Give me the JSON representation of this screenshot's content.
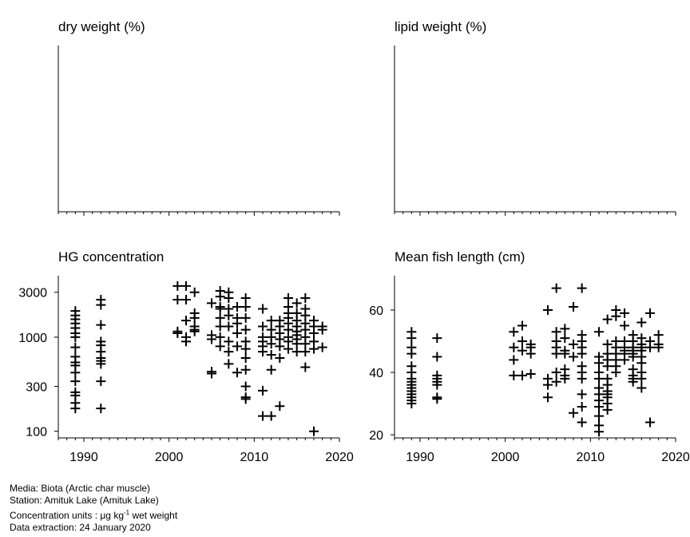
{
  "panels": {
    "dry_weight": {
      "title": "dry weight (%)"
    },
    "lipid_weight": {
      "title": "lipid weight (%)"
    },
    "hg": {
      "title": "HG concentration"
    },
    "length": {
      "title": "Mean fish length (cm)"
    }
  },
  "footer": {
    "media": "Media: Biota (Arctic char muscle)",
    "station": "Station: Amituk Lake (Amituk Lake)",
    "units_prefix": "Concentration units : μg kg",
    "units_exp": "-1",
    "units_suffix": " wet weight",
    "extraction": "Data extraction: 24 January 2020"
  },
  "chart_data": [
    {
      "type": "scatter",
      "title": "dry weight (%)",
      "xlim": [
        1987,
        2020
      ],
      "points": []
    },
    {
      "type": "scatter",
      "title": "lipid weight (%)",
      "xlim": [
        1987,
        2020
      ],
      "points": []
    },
    {
      "type": "scatter",
      "title": "HG concentration",
      "y_scale": "log",
      "xlim": [
        1987,
        2020
      ],
      "ylim": [
        85,
        4500
      ],
      "x_ticks": [
        1990,
        2000,
        2010,
        2020
      ],
      "y_ticks": [
        100,
        300,
        1000,
        3000
      ],
      "marker": "plus",
      "points": [
        {
          "x": 1989,
          "y": 1900
        },
        {
          "x": 1989,
          "y": 1700
        },
        {
          "x": 1989,
          "y": 1550
        },
        {
          "x": 1989,
          "y": 1400
        },
        {
          "x": 1989,
          "y": 1250
        },
        {
          "x": 1989,
          "y": 1100
        },
        {
          "x": 1989,
          "y": 1000
        },
        {
          "x": 1989,
          "y": 780
        },
        {
          "x": 1989,
          "y": 620
        },
        {
          "x": 1989,
          "y": 540
        },
        {
          "x": 1989,
          "y": 500
        },
        {
          "x": 1989,
          "y": 420
        },
        {
          "x": 1989,
          "y": 340
        },
        {
          "x": 1989,
          "y": 260
        },
        {
          "x": 1989,
          "y": 240
        },
        {
          "x": 1989,
          "y": 200
        },
        {
          "x": 1989,
          "y": 175
        },
        {
          "x": 1992,
          "y": 2500
        },
        {
          "x": 1992,
          "y": 2200
        },
        {
          "x": 1992,
          "y": 1350
        },
        {
          "x": 1992,
          "y": 900
        },
        {
          "x": 1992,
          "y": 820
        },
        {
          "x": 1992,
          "y": 700
        },
        {
          "x": 1992,
          "y": 600
        },
        {
          "x": 1992,
          "y": 560
        },
        {
          "x": 1992,
          "y": 520
        },
        {
          "x": 1992,
          "y": 340
        },
        {
          "x": 1992,
          "y": 175
        },
        {
          "x": 2001,
          "y": 3500
        },
        {
          "x": 2001,
          "y": 2500
        },
        {
          "x": 2001,
          "y": 1150
        },
        {
          "x": 2001,
          "y": 1100
        },
        {
          "x": 2002,
          "y": 3500
        },
        {
          "x": 2002,
          "y": 2500
        },
        {
          "x": 2002,
          "y": 1500
        },
        {
          "x": 2002,
          "y": 1000
        },
        {
          "x": 2002,
          "y": 900
        },
        {
          "x": 2003,
          "y": 3000
        },
        {
          "x": 2003,
          "y": 1800
        },
        {
          "x": 2003,
          "y": 1600
        },
        {
          "x": 2003,
          "y": 1300
        },
        {
          "x": 2003,
          "y": 1200
        },
        {
          "x": 2003,
          "y": 1150
        },
        {
          "x": 2005,
          "y": 2300
        },
        {
          "x": 2005,
          "y": 1050
        },
        {
          "x": 2005,
          "y": 950
        },
        {
          "x": 2005,
          "y": 430
        },
        {
          "x": 2005,
          "y": 410
        },
        {
          "x": 2006,
          "y": 3100
        },
        {
          "x": 2006,
          "y": 2700
        },
        {
          "x": 2006,
          "y": 2100
        },
        {
          "x": 2006,
          "y": 2000
        },
        {
          "x": 2006,
          "y": 1600
        },
        {
          "x": 2006,
          "y": 1300
        },
        {
          "x": 2006,
          "y": 1000
        },
        {
          "x": 2006,
          "y": 800
        },
        {
          "x": 2007,
          "y": 3000
        },
        {
          "x": 2007,
          "y": 2600
        },
        {
          "x": 2007,
          "y": 2000
        },
        {
          "x": 2007,
          "y": 1700
        },
        {
          "x": 2007,
          "y": 1300
        },
        {
          "x": 2007,
          "y": 900
        },
        {
          "x": 2007,
          "y": 700
        },
        {
          "x": 2007,
          "y": 520
        },
        {
          "x": 2008,
          "y": 2100
        },
        {
          "x": 2008,
          "y": 1600
        },
        {
          "x": 2008,
          "y": 1400
        },
        {
          "x": 2008,
          "y": 1100
        },
        {
          "x": 2008,
          "y": 800
        },
        {
          "x": 2008,
          "y": 420
        },
        {
          "x": 2009,
          "y": 2600
        },
        {
          "x": 2009,
          "y": 2100
        },
        {
          "x": 2009,
          "y": 1600
        },
        {
          "x": 2009,
          "y": 1200
        },
        {
          "x": 2009,
          "y": 900
        },
        {
          "x": 2009,
          "y": 750
        },
        {
          "x": 2009,
          "y": 600
        },
        {
          "x": 2009,
          "y": 450
        },
        {
          "x": 2009,
          "y": 300
        },
        {
          "x": 2009,
          "y": 230
        },
        {
          "x": 2009,
          "y": 220
        },
        {
          "x": 2011,
          "y": 2000
        },
        {
          "x": 2011,
          "y": 1300
        },
        {
          "x": 2011,
          "y": 1000
        },
        {
          "x": 2011,
          "y": 900
        },
        {
          "x": 2011,
          "y": 800
        },
        {
          "x": 2011,
          "y": 700
        },
        {
          "x": 2011,
          "y": 270
        },
        {
          "x": 2011,
          "y": 145
        },
        {
          "x": 2012,
          "y": 1500
        },
        {
          "x": 2012,
          "y": 1200
        },
        {
          "x": 2012,
          "y": 1000
        },
        {
          "x": 2012,
          "y": 850
        },
        {
          "x": 2012,
          "y": 650
        },
        {
          "x": 2012,
          "y": 450
        },
        {
          "x": 2012,
          "y": 145
        },
        {
          "x": 2013,
          "y": 1500
        },
        {
          "x": 2013,
          "y": 1300
        },
        {
          "x": 2013,
          "y": 1100
        },
        {
          "x": 2013,
          "y": 950
        },
        {
          "x": 2013,
          "y": 800
        },
        {
          "x": 2013,
          "y": 600
        },
        {
          "x": 2013,
          "y": 185
        },
        {
          "x": 2014,
          "y": 2600
        },
        {
          "x": 2014,
          "y": 2100
        },
        {
          "x": 2014,
          "y": 1800
        },
        {
          "x": 2014,
          "y": 1600
        },
        {
          "x": 2014,
          "y": 1400
        },
        {
          "x": 2014,
          "y": 1200
        },
        {
          "x": 2014,
          "y": 1000
        },
        {
          "x": 2014,
          "y": 900
        },
        {
          "x": 2014,
          "y": 750
        },
        {
          "x": 2015,
          "y": 2300
        },
        {
          "x": 2015,
          "y": 1800
        },
        {
          "x": 2015,
          "y": 1500
        },
        {
          "x": 2015,
          "y": 1300
        },
        {
          "x": 2015,
          "y": 1150
        },
        {
          "x": 2015,
          "y": 1050
        },
        {
          "x": 2015,
          "y": 950
        },
        {
          "x": 2015,
          "y": 850
        },
        {
          "x": 2015,
          "y": 700
        },
        {
          "x": 2016,
          "y": 2600
        },
        {
          "x": 2016,
          "y": 2000
        },
        {
          "x": 2016,
          "y": 1700
        },
        {
          "x": 2016,
          "y": 1400
        },
        {
          "x": 2016,
          "y": 1200
        },
        {
          "x": 2016,
          "y": 1000
        },
        {
          "x": 2016,
          "y": 850
        },
        {
          "x": 2016,
          "y": 700
        },
        {
          "x": 2016,
          "y": 480
        },
        {
          "x": 2017,
          "y": 1500
        },
        {
          "x": 2017,
          "y": 1300
        },
        {
          "x": 2017,
          "y": 1100
        },
        {
          "x": 2017,
          "y": 900
        },
        {
          "x": 2017,
          "y": 750
        },
        {
          "x": 2017,
          "y": 100
        },
        {
          "x": 2018,
          "y": 1300
        },
        {
          "x": 2018,
          "y": 1200
        },
        {
          "x": 2018,
          "y": 780
        }
      ]
    },
    {
      "type": "scatter",
      "title": "Mean fish length (cm)",
      "xlim": [
        1987,
        2020
      ],
      "ylim": [
        19,
        71
      ],
      "x_ticks": [
        1990,
        2000,
        2010,
        2020
      ],
      "y_ticks": [
        20,
        40,
        60
      ],
      "marker": "plus",
      "points": [
        {
          "x": 1989,
          "y": 53
        },
        {
          "x": 1989,
          "y": 51
        },
        {
          "x": 1989,
          "y": 48
        },
        {
          "x": 1989,
          "y": 46
        },
        {
          "x": 1989,
          "y": 42
        },
        {
          "x": 1989,
          "y": 40
        },
        {
          "x": 1989,
          "y": 38
        },
        {
          "x": 1989,
          "y": 37
        },
        {
          "x": 1989,
          "y": 36
        },
        {
          "x": 1989,
          "y": 35
        },
        {
          "x": 1989,
          "y": 34
        },
        {
          "x": 1989,
          "y": 33
        },
        {
          "x": 1989,
          "y": 32
        },
        {
          "x": 1989,
          "y": 31
        },
        {
          "x": 1989,
          "y": 30
        },
        {
          "x": 1992,
          "y": 51
        },
        {
          "x": 1992,
          "y": 45
        },
        {
          "x": 1992,
          "y": 39
        },
        {
          "x": 1992,
          "y": 38
        },
        {
          "x": 1992,
          "y": 37
        },
        {
          "x": 1992,
          "y": 36
        },
        {
          "x": 1992,
          "y": 32
        },
        {
          "x": 1992,
          "y": 31.5
        },
        {
          "x": 2001,
          "y": 53
        },
        {
          "x": 2001,
          "y": 48
        },
        {
          "x": 2001,
          "y": 44
        },
        {
          "x": 2001,
          "y": 39
        },
        {
          "x": 2002,
          "y": 55
        },
        {
          "x": 2002,
          "y": 50
        },
        {
          "x": 2002,
          "y": 47
        },
        {
          "x": 2002,
          "y": 39
        },
        {
          "x": 2003,
          "y": 49
        },
        {
          "x": 2003,
          "y": 48
        },
        {
          "x": 2003,
          "y": 46
        },
        {
          "x": 2003,
          "y": 39.5
        },
        {
          "x": 2005,
          "y": 60
        },
        {
          "x": 2005,
          "y": 38
        },
        {
          "x": 2005,
          "y": 36
        },
        {
          "x": 2005,
          "y": 32
        },
        {
          "x": 2006,
          "y": 67
        },
        {
          "x": 2006,
          "y": 53
        },
        {
          "x": 2006,
          "y": 50
        },
        {
          "x": 2006,
          "y": 48
        },
        {
          "x": 2006,
          "y": 46
        },
        {
          "x": 2006,
          "y": 40
        },
        {
          "x": 2006,
          "y": 37
        },
        {
          "x": 2007,
          "y": 54
        },
        {
          "x": 2007,
          "y": 51
        },
        {
          "x": 2007,
          "y": 47
        },
        {
          "x": 2007,
          "y": 46
        },
        {
          "x": 2007,
          "y": 41
        },
        {
          "x": 2007,
          "y": 39
        },
        {
          "x": 2007,
          "y": 38
        },
        {
          "x": 2008,
          "y": 61
        },
        {
          "x": 2008,
          "y": 49
        },
        {
          "x": 2008,
          "y": 45
        },
        {
          "x": 2008,
          "y": 27
        },
        {
          "x": 2009,
          "y": 67
        },
        {
          "x": 2009,
          "y": 52
        },
        {
          "x": 2009,
          "y": 50
        },
        {
          "x": 2009,
          "y": 48
        },
        {
          "x": 2009,
          "y": 46
        },
        {
          "x": 2009,
          "y": 42
        },
        {
          "x": 2009,
          "y": 40
        },
        {
          "x": 2009,
          "y": 38
        },
        {
          "x": 2009,
          "y": 33
        },
        {
          "x": 2009,
          "y": 29
        },
        {
          "x": 2009,
          "y": 24
        },
        {
          "x": 2011,
          "y": 53
        },
        {
          "x": 2011,
          "y": 45
        },
        {
          "x": 2011,
          "y": 43
        },
        {
          "x": 2011,
          "y": 40
        },
        {
          "x": 2011,
          "y": 38
        },
        {
          "x": 2011,
          "y": 35
        },
        {
          "x": 2011,
          "y": 33
        },
        {
          "x": 2011,
          "y": 31
        },
        {
          "x": 2011,
          "y": 29
        },
        {
          "x": 2011,
          "y": 26
        },
        {
          "x": 2011,
          "y": 23
        },
        {
          "x": 2011,
          "y": 21
        },
        {
          "x": 2012,
          "y": 57
        },
        {
          "x": 2012,
          "y": 49
        },
        {
          "x": 2012,
          "y": 46
        },
        {
          "x": 2012,
          "y": 44
        },
        {
          "x": 2012,
          "y": 42
        },
        {
          "x": 2012,
          "y": 38
        },
        {
          "x": 2012,
          "y": 36
        },
        {
          "x": 2012,
          "y": 34
        },
        {
          "x": 2012,
          "y": 33
        },
        {
          "x": 2012,
          "y": 32
        },
        {
          "x": 2012,
          "y": 30
        },
        {
          "x": 2012,
          "y": 28
        },
        {
          "x": 2013,
          "y": 60
        },
        {
          "x": 2013,
          "y": 58
        },
        {
          "x": 2013,
          "y": 50
        },
        {
          "x": 2013,
          "y": 48
        },
        {
          "x": 2013,
          "y": 46
        },
        {
          "x": 2013,
          "y": 44
        },
        {
          "x": 2013,
          "y": 42
        },
        {
          "x": 2013,
          "y": 40
        },
        {
          "x": 2014,
          "y": 59
        },
        {
          "x": 2014,
          "y": 55
        },
        {
          "x": 2014,
          "y": 50
        },
        {
          "x": 2014,
          "y": 48
        },
        {
          "x": 2014,
          "y": 47
        },
        {
          "x": 2014,
          "y": 46
        },
        {
          "x": 2014,
          "y": 44
        },
        {
          "x": 2015,
          "y": 52
        },
        {
          "x": 2015,
          "y": 50
        },
        {
          "x": 2015,
          "y": 48
        },
        {
          "x": 2015,
          "y": 47
        },
        {
          "x": 2015,
          "y": 46
        },
        {
          "x": 2015,
          "y": 45
        },
        {
          "x": 2015,
          "y": 41
        },
        {
          "x": 2015,
          "y": 39
        },
        {
          "x": 2015,
          "y": 38
        },
        {
          "x": 2015,
          "y": 37
        },
        {
          "x": 2016,
          "y": 56
        },
        {
          "x": 2016,
          "y": 51
        },
        {
          "x": 2016,
          "y": 49
        },
        {
          "x": 2016,
          "y": 48
        },
        {
          "x": 2016,
          "y": 47
        },
        {
          "x": 2016,
          "y": 45
        },
        {
          "x": 2016,
          "y": 43
        },
        {
          "x": 2016,
          "y": 40
        },
        {
          "x": 2016,
          "y": 38
        },
        {
          "x": 2016,
          "y": 35
        },
        {
          "x": 2017,
          "y": 59
        },
        {
          "x": 2017,
          "y": 50
        },
        {
          "x": 2017,
          "y": 48
        },
        {
          "x": 2017,
          "y": 24
        },
        {
          "x": 2018,
          "y": 52
        },
        {
          "x": 2018,
          "y": 49
        },
        {
          "x": 2018,
          "y": 48
        }
      ]
    }
  ]
}
